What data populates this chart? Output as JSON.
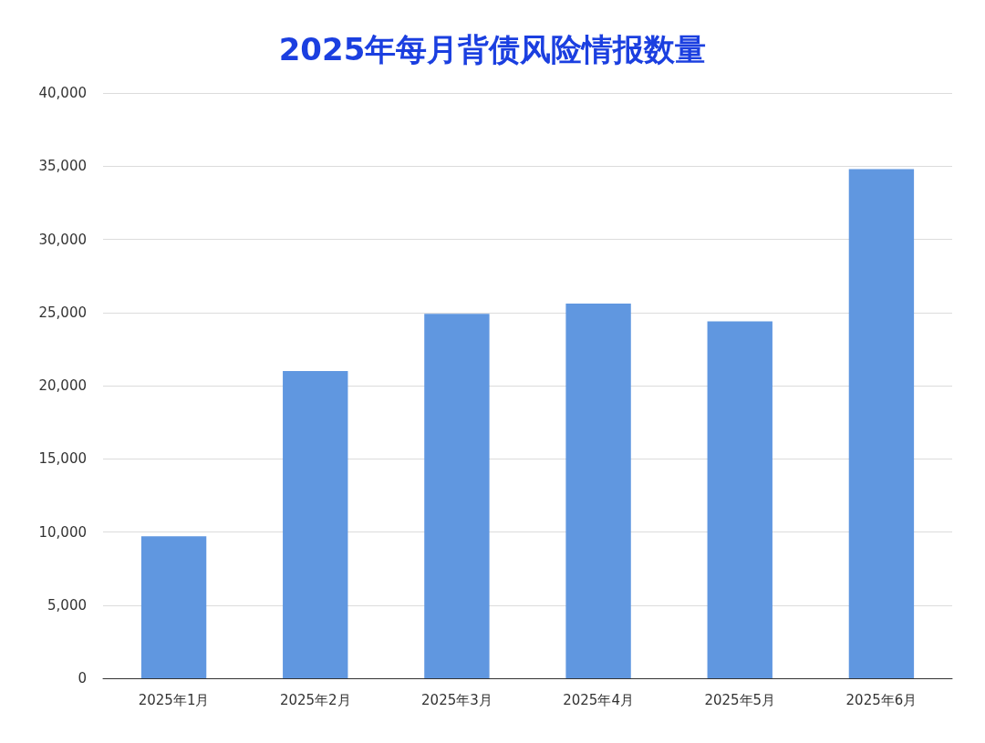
{
  "chart_data": {
    "type": "bar",
    "title": "2025年每月背债风险情报数量",
    "categories": [
      "2025年1月",
      "2025年2月",
      "2025年3月",
      "2025年4月",
      "2025年5月",
      "2025年6月"
    ],
    "values": [
      9700,
      21000,
      24900,
      25600,
      24400,
      34800
    ],
    "color": "#6097e0",
    "ylim": [
      0,
      40000
    ],
    "yticks": [
      0,
      {
        "value": 5000,
        "label": "5,000"
      },
      {
        "value": 10000,
        "label": "10,000"
      },
      {
        "value": 15000,
        "label": "15,000"
      },
      {
        "value": 20000,
        "label": "20,000"
      },
      {
        "value": 25000,
        "label": "25,000"
      },
      {
        "value": 30000,
        "label": "30,000"
      },
      {
        "value": 35000,
        "label": "35,000"
      },
      {
        "value": 40000,
        "label": "40,000"
      }
    ],
    "grid": "y"
  }
}
